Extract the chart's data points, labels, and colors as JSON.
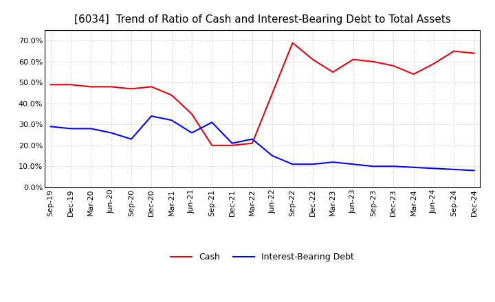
{
  "title": "[6034]  Trend of Ratio of Cash and Interest-Bearing Debt to Total Assets",
  "x_labels": [
    "Sep-19",
    "Dec-19",
    "Mar-20",
    "Jun-20",
    "Sep-20",
    "Dec-20",
    "Mar-21",
    "Jun-21",
    "Sep-21",
    "Dec-21",
    "Mar-22",
    "Jun-22",
    "Sep-22",
    "Dec-22",
    "Mar-23",
    "Jun-23",
    "Sep-23",
    "Dec-23",
    "Mar-24",
    "Jun-24",
    "Sep-24",
    "Dec-24"
  ],
  "cash": [
    0.49,
    0.49,
    0.48,
    0.48,
    0.47,
    0.48,
    0.44,
    0.35,
    0.2,
    0.2,
    0.21,
    0.45,
    0.69,
    0.61,
    0.55,
    0.61,
    0.6,
    0.58,
    0.54,
    0.59,
    0.65,
    0.64
  ],
  "interest_bearing_debt": [
    0.29,
    0.28,
    0.28,
    0.26,
    0.23,
    0.34,
    0.32,
    0.26,
    0.31,
    0.21,
    0.23,
    0.15,
    0.11,
    0.11,
    0.12,
    0.11,
    0.1,
    0.1,
    0.095,
    0.09,
    0.085,
    0.08
  ],
  "cash_color": "#e8000d",
  "ibd_color": "#0000ff",
  "background_color": "#ffffff",
  "grid_color": "#bbbbbb",
  "ylim": [
    0.0,
    0.75
  ],
  "yticks": [
    0.0,
    0.1,
    0.2,
    0.3,
    0.4,
    0.5,
    0.6,
    0.7
  ],
  "legend_cash": "Cash",
  "legend_ibd": "Interest-Bearing Debt",
  "title_fontsize": 11,
  "axis_fontsize": 8,
  "legend_fontsize": 9
}
